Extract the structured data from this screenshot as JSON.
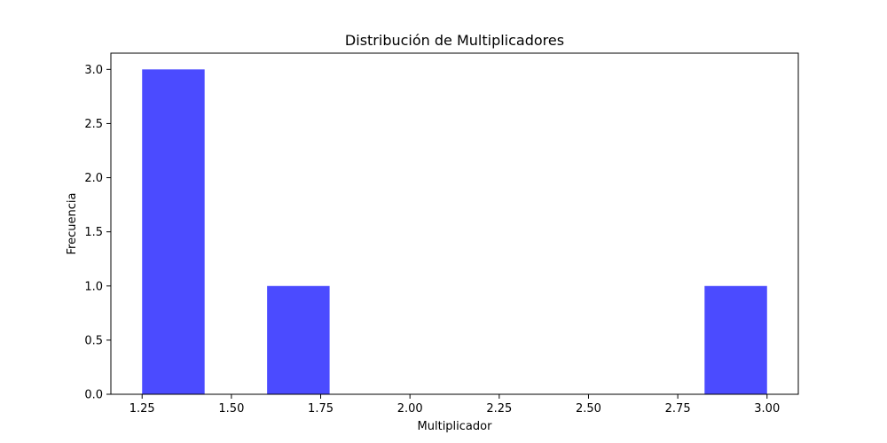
{
  "chart_data": {
    "type": "bar",
    "subtype": "histogram",
    "title": "Distribución de Multiplicadores",
    "xlabel": "Multiplicador",
    "ylabel": "Frecuencia",
    "bar_color": "#4b4bff",
    "bins": [
      {
        "x0": 1.25,
        "x1": 1.425,
        "count": 3
      },
      {
        "x0": 1.425,
        "x1": 1.6,
        "count": 0
      },
      {
        "x0": 1.6,
        "x1": 1.775,
        "count": 1
      },
      {
        "x0": 1.775,
        "x1": 1.95,
        "count": 0
      },
      {
        "x0": 1.95,
        "x1": 2.125,
        "count": 0
      },
      {
        "x0": 2.125,
        "x1": 2.3,
        "count": 0
      },
      {
        "x0": 2.3,
        "x1": 2.475,
        "count": 0
      },
      {
        "x0": 2.475,
        "x1": 2.65,
        "count": 0
      },
      {
        "x0": 2.65,
        "x1": 2.825,
        "count": 0
      },
      {
        "x0": 2.825,
        "x1": 3.0,
        "count": 1
      }
    ],
    "xlim": [
      1.1625,
      3.0875
    ],
    "ylim": [
      0,
      3.15
    ],
    "xticks": [
      1.25,
      1.5,
      1.75,
      2.0,
      2.25,
      2.5,
      2.75,
      3.0
    ],
    "xtick_labels": [
      "1.25",
      "1.50",
      "1.75",
      "2.00",
      "2.25",
      "2.50",
      "2.75",
      "3.00"
    ],
    "yticks": [
      0,
      0.5,
      1.0,
      1.5,
      2.0,
      2.5,
      3.0
    ],
    "ytick_labels": [
      "0.0",
      "0.5",
      "1.0",
      "1.5",
      "2.0",
      "2.5",
      "3.0"
    ],
    "grid": false,
    "legend": false
  }
}
